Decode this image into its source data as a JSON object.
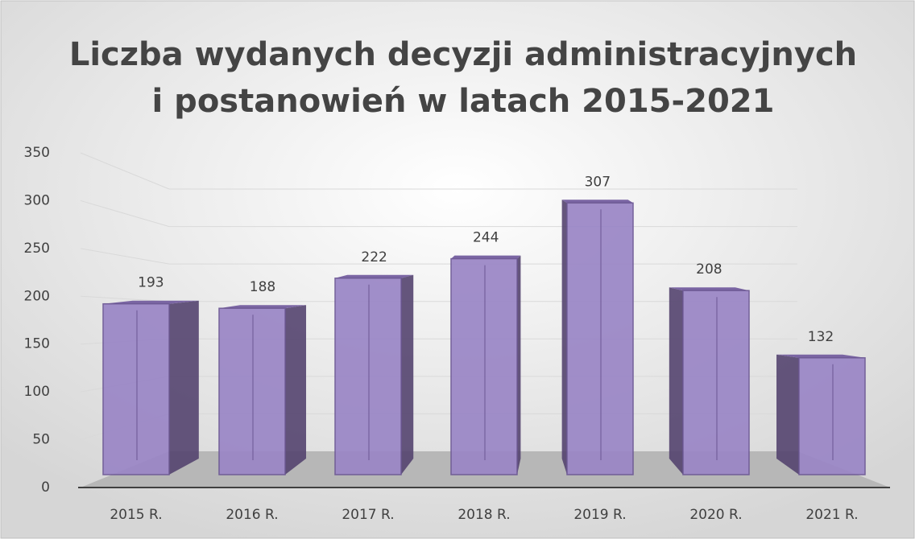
{
  "chart_data": {
    "type": "bar",
    "title": [
      "Liczba wydanych decyzji administracyjnych",
      "i postanowień w latach 2015-2021"
    ],
    "categories": [
      "2015 R.",
      "2016 R.",
      "2017 R.",
      "2018 R.",
      "2019 R.",
      "2020 R.",
      "2021 R."
    ],
    "values": [
      193,
      188,
      222,
      244,
      307,
      208,
      132
    ],
    "color": "#9a86c6",
    "ylim": [
      0,
      350
    ],
    "yticks": [
      0,
      50,
      100,
      150,
      200,
      250,
      300,
      350
    ],
    "grid": true
  }
}
